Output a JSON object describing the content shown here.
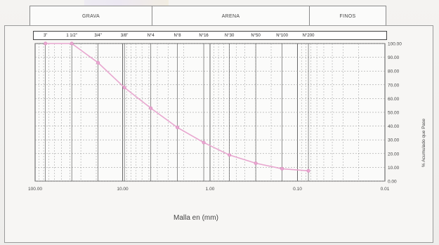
{
  "header_bands": [
    {
      "label": "GRAVA"
    },
    {
      "label": "ARENA"
    },
    {
      "label": "FINOS"
    }
  ],
  "sieves": [
    "3\"",
    "1 1/2\"",
    "3/4\"",
    "3/8\"",
    "N°4",
    "N°8",
    "N°16",
    "N°30",
    "N°50",
    "N°100",
    "N°200"
  ],
  "chart_data": {
    "type": "line",
    "title": "",
    "xlabel": "Malla en (mm)",
    "ylabel": "% Acumulado que Pase",
    "x_scale": "log",
    "x_reversed": true,
    "xlim": [
      100,
      0.01
    ],
    "ylim": [
      0,
      100
    ],
    "grid": true,
    "x_ticks": [
      "100.00",
      "10.00",
      "1.00",
      "0.10",
      "0.01"
    ],
    "y_ticks": [
      "0.00",
      "10.00",
      "20.00",
      "30.00",
      "40.00",
      "50.00",
      "60.00",
      "70.00",
      "80.00",
      "90.00",
      "100.00"
    ],
    "series": [
      {
        "color": "#e8a6cf",
        "points": [
          {
            "x": 76.2,
            "y": 100.0
          },
          {
            "x": 38.1,
            "y": 100.0
          },
          {
            "x": 19.05,
            "y": 86.0
          },
          {
            "x": 9.525,
            "y": 68.0
          },
          {
            "x": 4.75,
            "y": 53.0
          },
          {
            "x": 2.36,
            "y": 39.0
          },
          {
            "x": 1.18,
            "y": 28.0
          },
          {
            "x": 0.6,
            "y": 19.0
          },
          {
            "x": 0.3,
            "y": 13.0
          },
          {
            "x": 0.15,
            "y": 9.0
          },
          {
            "x": 0.075,
            "y": 7.5
          }
        ]
      }
    ]
  }
}
